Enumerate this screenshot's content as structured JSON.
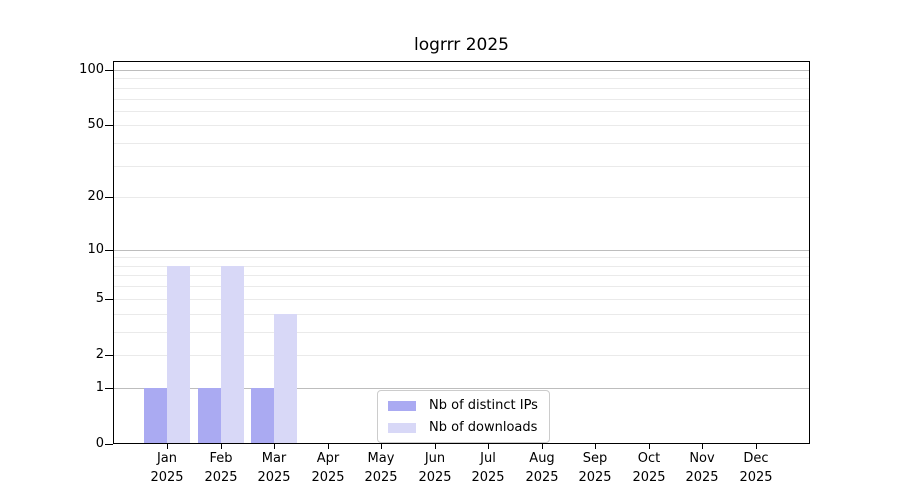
{
  "chart_data": {
    "type": "bar",
    "title": "logrrr 2025",
    "categories": [
      "Jan",
      "Feb",
      "Mar",
      "Apr",
      "May",
      "Jun",
      "Jul",
      "Aug",
      "Sep",
      "Oct",
      "Nov",
      "Dec"
    ],
    "xtick_year": "2025",
    "series": [
      {
        "name": "Nb of distinct IPs",
        "color": "#aaaaf2",
        "values": [
          1,
          1,
          1,
          0,
          0,
          0,
          0,
          0,
          0,
          0,
          0,
          0
        ]
      },
      {
        "name": "Nb of downloads",
        "color": "#d8d8f7",
        "values": [
          8,
          8,
          4,
          0,
          0,
          0,
          0,
          0,
          0,
          0,
          0,
          0
        ]
      }
    ],
    "yscale": "log1p",
    "ylim": [
      0,
      112
    ],
    "ytick_values": [
      0,
      1,
      2,
      5,
      10,
      20,
      50,
      100
    ],
    "ytick_labels": [
      "0",
      "1",
      "2",
      "5",
      "10",
      "20",
      "50",
      "100"
    ],
    "major_grid_values": [
      1,
      10,
      100
    ],
    "minor_grid_values": [
      2,
      3,
      4,
      5,
      6,
      7,
      8,
      9,
      20,
      30,
      40,
      50,
      60,
      70,
      80,
      90
    ],
    "grid": "horizontal-only",
    "legend_position": "bottom-center-inside"
  },
  "colors": {
    "background": "#ffffff",
    "spine": "#000000",
    "major_grid": "#bdbdbd",
    "minor_grid": "#eaeaea",
    "legend_border": "#cccccc"
  }
}
